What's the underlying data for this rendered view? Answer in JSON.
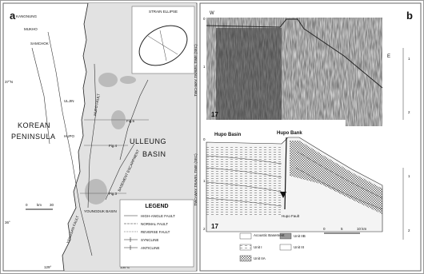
{
  "panel_a": {
    "label": "a",
    "inset_title": "STRAIN ELLIPSE",
    "places": [
      "KANGNUNG",
      "MUKHO",
      "SAMCHOK",
      "ULJIN",
      "HUPO"
    ],
    "regions": [
      "KOREAN",
      "PENINSULA",
      "ULLEUNG",
      "BASIN"
    ],
    "features": [
      "YANGSAN FAULT",
      "HUPO FAULT",
      "BASEMENT ESCARPMENT",
      "YOUNGDUK BASIN"
    ],
    "figure_refs": [
      "Fig.5",
      "Fig.4",
      "Fig.3"
    ],
    "latitudes": [
      "37°N",
      "36°"
    ],
    "longitudes": [
      "129°",
      "130°E"
    ],
    "scale": [
      "0",
      "km",
      "30"
    ],
    "legend": {
      "title": "LEGEND",
      "items": [
        "HIGH-ANGLE FAULT",
        "NORMAL FAULT",
        "REVERSE FAULT",
        "SYNCLINE",
        "ANTICLINE"
      ]
    }
  },
  "panel_b": {
    "label": "b",
    "profile": {
      "west": "W",
      "east": "E",
      "axis_title": "TWO-WAY TRAVEL TIME (SEC)",
      "line_number": "17",
      "ticks": [
        "0",
        "1",
        "2"
      ]
    },
    "interpretation": {
      "axis_title": "TWO-WAY TRAVEL TIME (SEC)",
      "line_number": "17",
      "ticks": [
        "0",
        "1",
        "2"
      ],
      "labels": [
        "Hupo Basin",
        "Hupo Bank",
        "Hupo Fault"
      ]
    },
    "legend": [
      "Acoustic Basement",
      "Unit IIB",
      "Unit I",
      "Unit III",
      "Unit IIA"
    ],
    "scale": [
      "0",
      "5",
      "10 km"
    ]
  }
}
